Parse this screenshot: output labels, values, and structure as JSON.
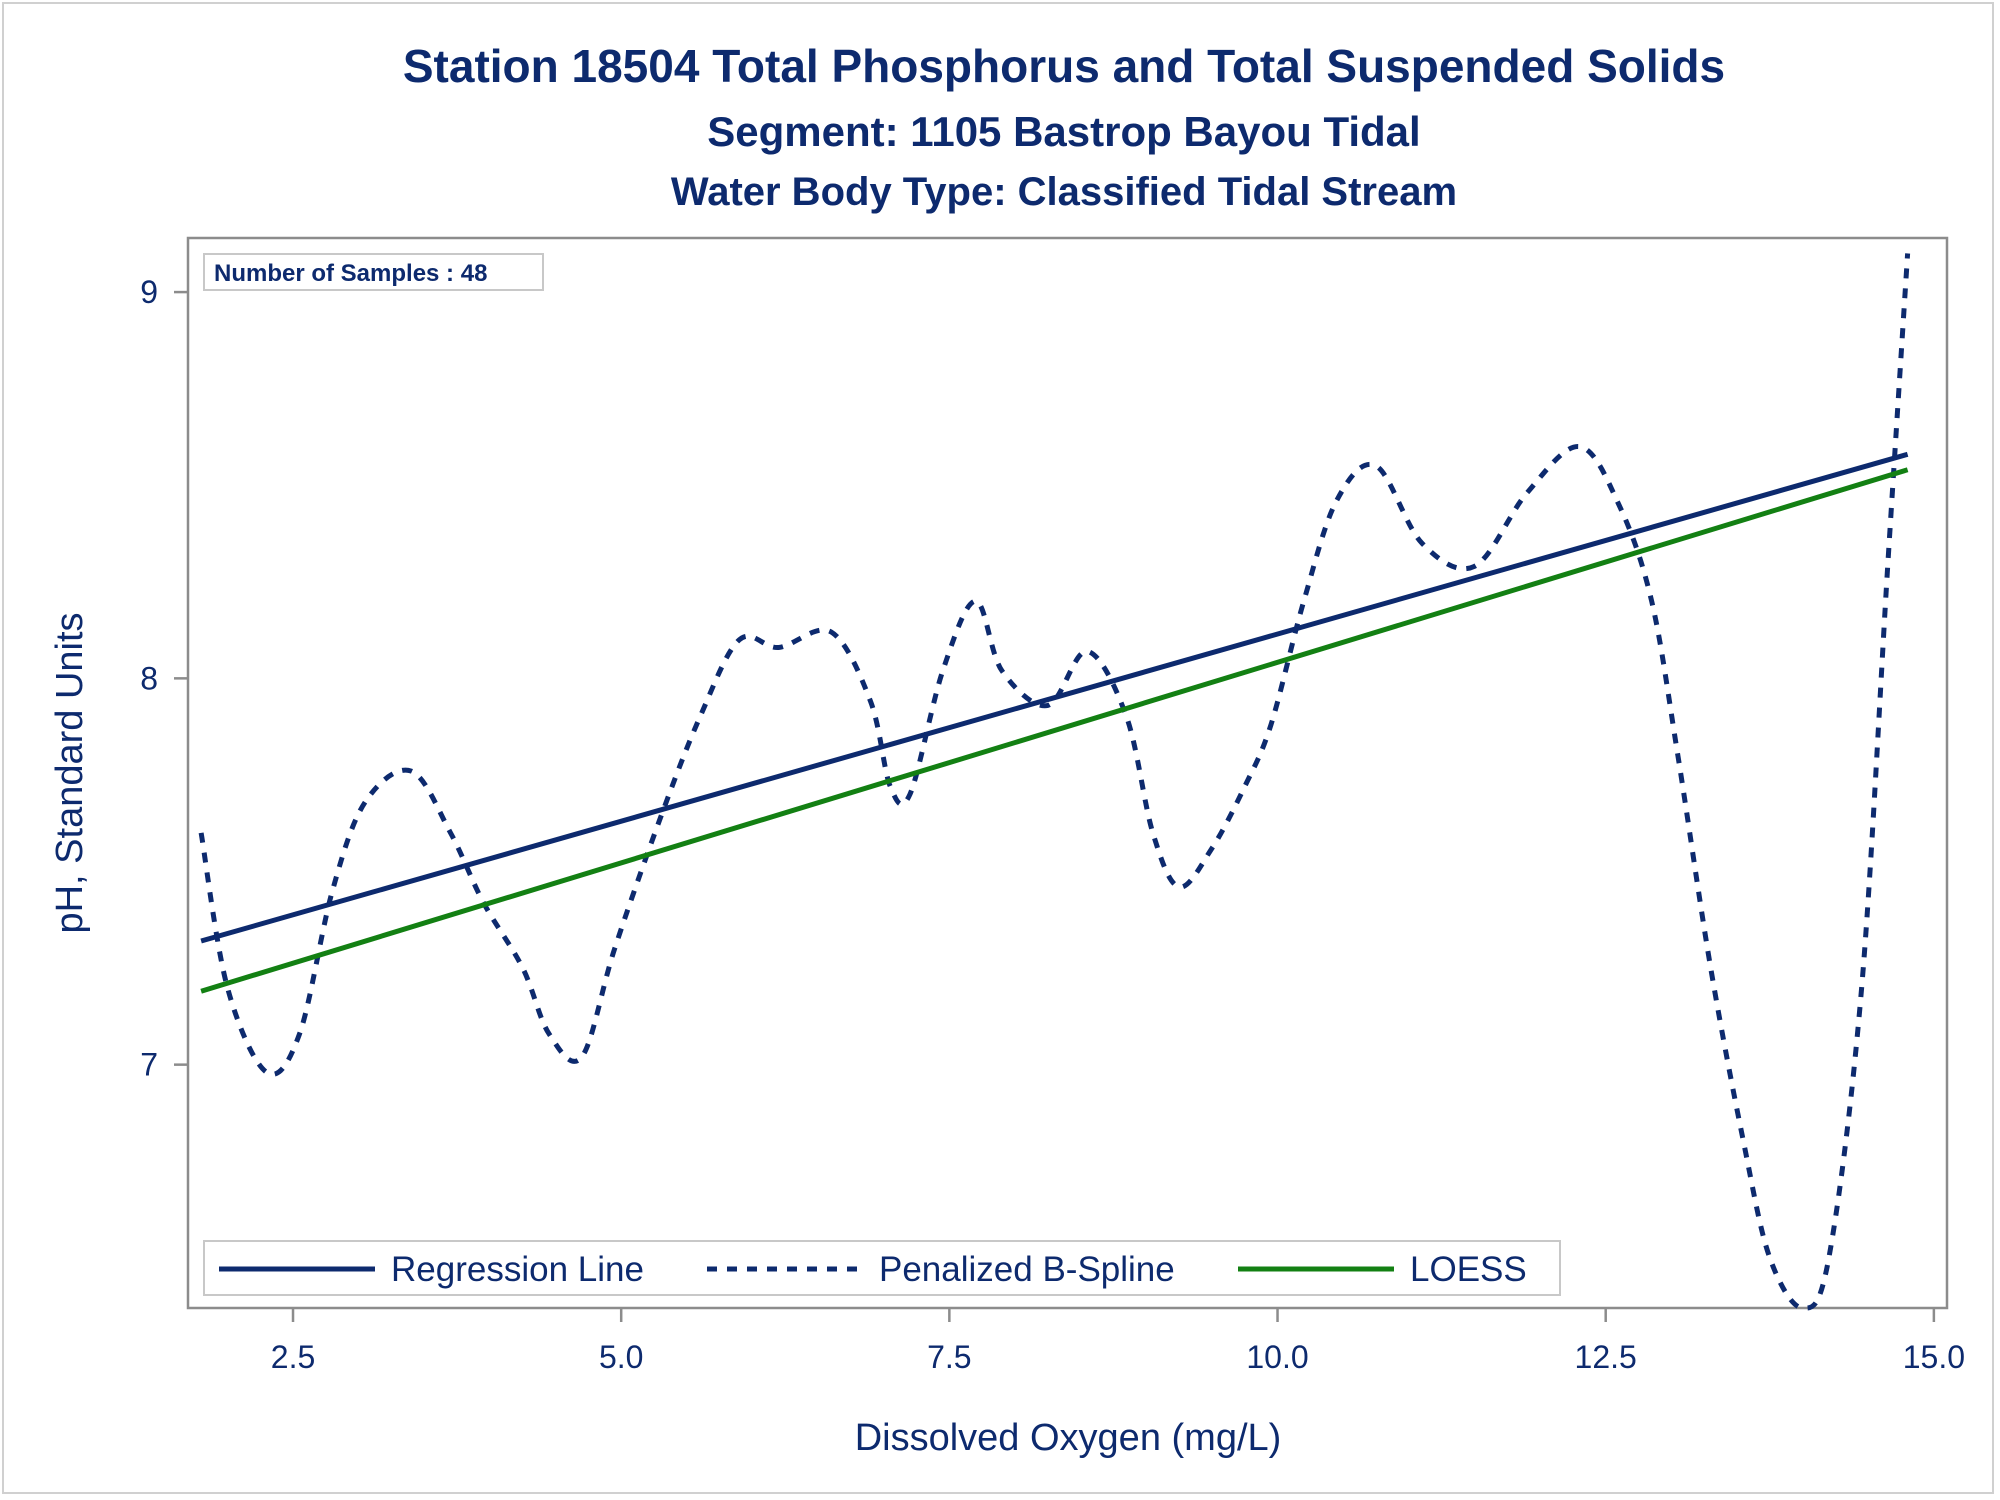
{
  "chart_data": {
    "type": "line",
    "title": "Station 18504  Total Phosphorus and Total Suspended Solids",
    "subtitle": "Segment: 1105  Bastrop Bayou Tidal",
    "subtitle2": "Water Body Type: Classified Tidal Stream",
    "xlabel": "Dissolved Oxygen (mg/L)",
    "ylabel": "pH, Standard Units",
    "xlim": [
      1.7,
      15.1
    ],
    "ylim": [
      6.37,
      9.14
    ],
    "x_ticks": [
      2.5,
      5.0,
      7.5,
      10.0,
      12.5,
      15.0
    ],
    "x_tick_labels": [
      "2.5",
      "5.0",
      "7.5",
      "10.0",
      "12.5",
      "15.0"
    ],
    "y_ticks": [
      7,
      8,
      9
    ],
    "y_tick_labels": [
      "7",
      "8",
      "9"
    ],
    "grid": false,
    "inset_label": "Number of Samples : 48",
    "legend_position": "bottom-left inside",
    "series": [
      {
        "name": "Regression Line",
        "style": "solid",
        "color": "#0d2a6e",
        "x": [
          1.8,
          14.8
        ],
        "y": [
          7.32,
          8.58
        ]
      },
      {
        "name": "Penalized B-Spline",
        "style": "dashed",
        "color": "#0d2a6e",
        "x": [
          1.8,
          2.0,
          2.3,
          2.55,
          2.8,
          3.05,
          3.4,
          3.7,
          3.95,
          4.25,
          4.45,
          4.7,
          4.95,
          5.3,
          5.6,
          5.9,
          6.2,
          6.6,
          6.9,
          7.05,
          7.2,
          7.45,
          7.7,
          7.9,
          8.25,
          8.55,
          8.85,
          9.05,
          9.25,
          9.5,
          9.75,
          9.95,
          10.2,
          10.45,
          10.75,
          11.1,
          11.5,
          11.9,
          12.3,
          12.6,
          12.85,
          13.05,
          13.3,
          13.55,
          13.75,
          14.0,
          14.2,
          14.45,
          14.65,
          14.8
        ],
        "y": [
          7.6,
          7.2,
          6.98,
          7.08,
          7.45,
          7.68,
          7.76,
          7.6,
          7.42,
          7.25,
          7.08,
          7.02,
          7.3,
          7.64,
          7.9,
          8.1,
          8.08,
          8.12,
          7.94,
          7.72,
          7.7,
          8.02,
          8.2,
          8.02,
          7.93,
          8.07,
          7.9,
          7.6,
          7.46,
          7.56,
          7.72,
          7.88,
          8.2,
          8.46,
          8.55,
          8.35,
          8.29,
          8.48,
          8.6,
          8.45,
          8.2,
          7.8,
          7.25,
          6.8,
          6.5,
          6.37,
          6.5,
          7.2,
          8.3,
          9.1
        ]
      },
      {
        "name": "LOESS",
        "style": "solid",
        "color": "#138013",
        "x": [
          1.8,
          14.8
        ],
        "y": [
          7.19,
          8.54
        ]
      }
    ]
  }
}
